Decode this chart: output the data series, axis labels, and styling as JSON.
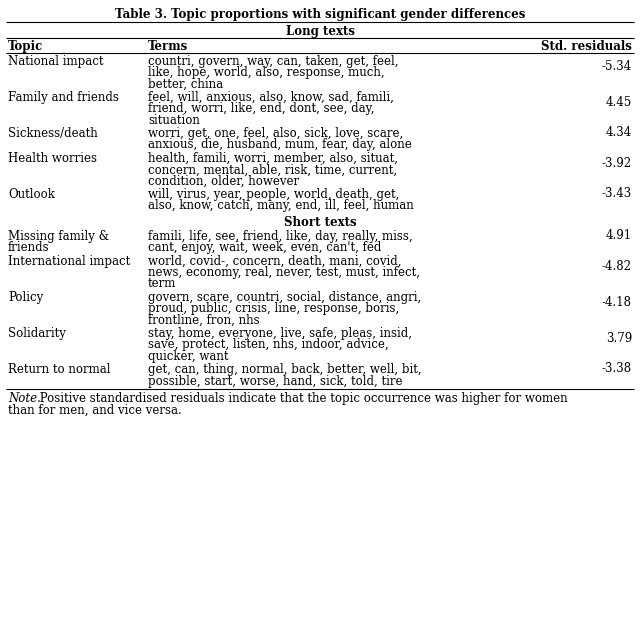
{
  "title": "Table 3. Topic proportions with significant gender differences",
  "section_long": "Long texts",
  "section_short": "Short texts",
  "col_headers": [
    "Topic",
    "Terms",
    "Std. residuals"
  ],
  "long_rows": [
    {
      "topic": "National impact",
      "terms": "countri, govern, way, can, taken, get, feel,\nlike, hope, world, also, response, much,\nbetter, china",
      "residual": "-5.34"
    },
    {
      "topic": "Family and friends",
      "terms": "feel, will, anxious, also, know, sad, famili,\nfriend, worri, like, end, dont, see, day,\nsituation",
      "residual": "4.45"
    },
    {
      "topic": "Sickness/death",
      "terms": "worri, get, one, feel, also, sick, love, scare,\nanxious, die, husband, mum, fear, day, alone",
      "residual": "4.34"
    },
    {
      "topic": "Health worries",
      "terms": "health, famili, worri, member, also, situat,\nconcern, mental, able, risk, time, current,\ncondition, older, however",
      "residual": "-3.92"
    },
    {
      "topic": "Outlook",
      "terms": "will, virus, year, people, world, death, get,\nalso, know, catch, many, end, ill, feel, human",
      "residual": "-3.43"
    }
  ],
  "short_rows": [
    {
      "topic": "Missing family &\nfriends",
      "terms": "famili, life, see, friend, like, day, really, miss,\ncant, enjoy, wait, week, even, can't, fed",
      "residual": "4.91"
    },
    {
      "topic": "International impact",
      "terms": "world, covid-, concern, death, mani, covid,\nnews, economy, real, never, test, must, infect,\nterm",
      "residual": "-4.82"
    },
    {
      "topic": "Policy",
      "terms": "govern, scare, countri, social, distance, angri,\nproud, public, crisis, line, response, boris,\nfrontline, fron, nhs",
      "residual": "-4.18"
    },
    {
      "topic": "Solidarity",
      "terms": "stay, home, everyone, live, safe, pleas, insid,\nsave, protect, listen, nhs, indoor, advice,\nquicker, want",
      "residual": "3.79"
    },
    {
      "topic": "Return to normal",
      "terms": "get, can, thing, normal, back, better, well, bit,\npossible, start, worse, hand, sick, told, tire",
      "residual": "-3.38"
    }
  ],
  "note_italic": "Note.",
  "note_rest": " Positive standardised residuals indicate that the topic occurrence was higher for women",
  "note_line2": "than for men, and vice versa.",
  "bg_color": "#ffffff",
  "font_size": 8.5,
  "title_font_size": 8.5
}
